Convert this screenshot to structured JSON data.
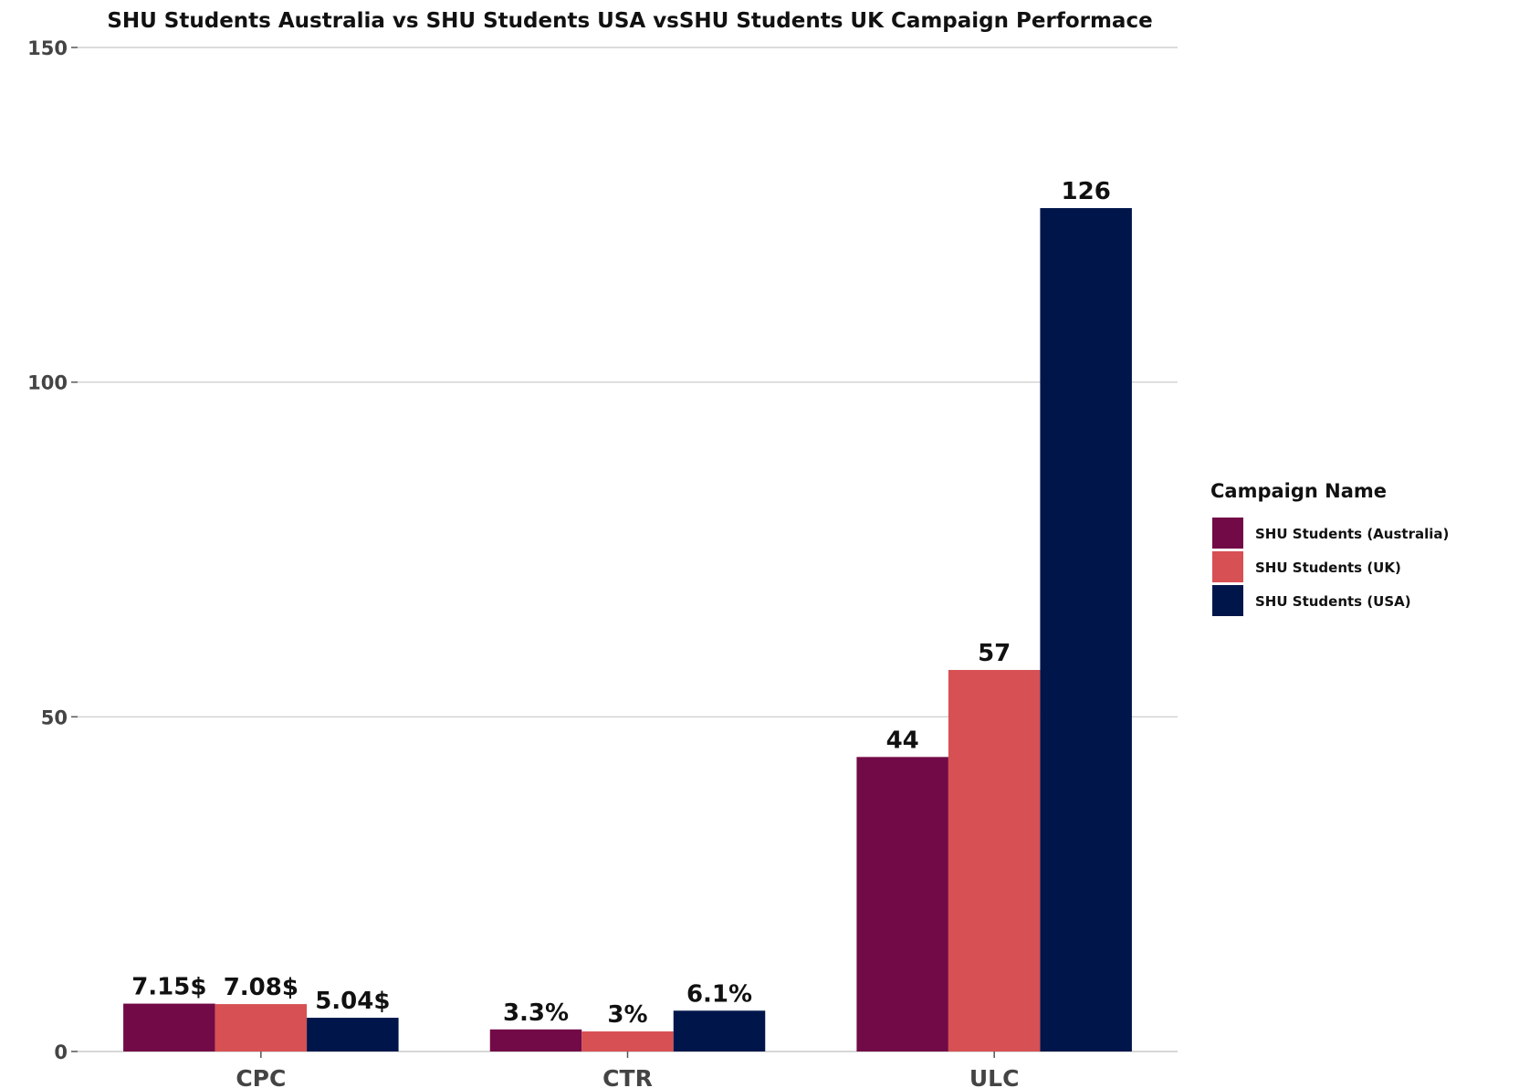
{
  "chart_data": {
    "type": "bar",
    "title": "SHU Students Australia vs SHU Students USA vsSHU Students UK Campaign Performace",
    "xlabel": "",
    "ylabel": "",
    "categories": [
      "CPC",
      "CTR",
      "ULC"
    ],
    "ylim": [
      0,
      150
    ],
    "yticks": [
      0,
      50,
      100,
      150
    ],
    "grid": true,
    "legend_position": "right",
    "legend_title": "Campaign Name",
    "series": [
      {
        "name": "SHU Students (Australia)",
        "color": "#720A47",
        "values": [
          7.15,
          3.3,
          44
        ],
        "labels": [
          "7.15$",
          "3.3%",
          "44"
        ]
      },
      {
        "name": "SHU Students (UK)",
        "color": "#D75053",
        "values": [
          7.08,
          3.0,
          57
        ],
        "labels": [
          "7.08$",
          "3%",
          "57"
        ]
      },
      {
        "name": "SHU Students (USA)",
        "color": "#00164B",
        "values": [
          5.04,
          6.1,
          126
        ],
        "labels": [
          "5.04$",
          "6.1%",
          "126"
        ]
      }
    ]
  }
}
